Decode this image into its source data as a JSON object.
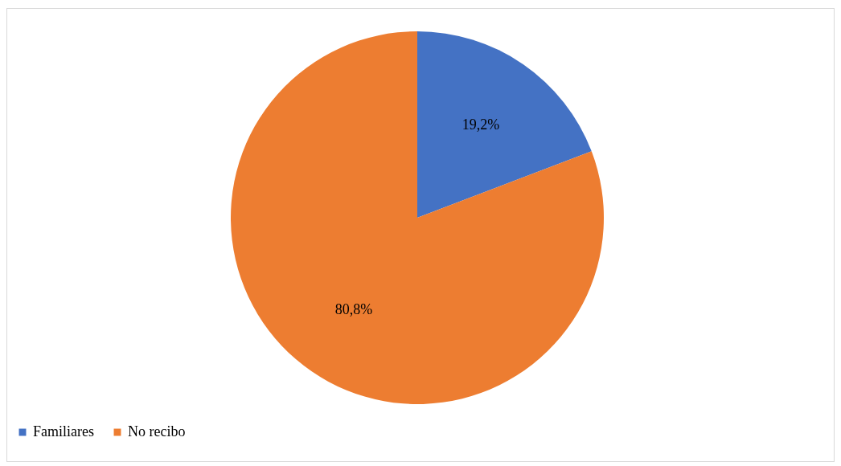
{
  "chart_data": {
    "type": "pie",
    "categories": [
      "Familiares",
      "No recibo"
    ],
    "values": [
      19.2,
      80.8
    ],
    "colors": [
      "#4472c4",
      "#ed7d31"
    ],
    "value_labels": [
      "19,2%",
      "80,8%"
    ],
    "legend": "bottom"
  }
}
